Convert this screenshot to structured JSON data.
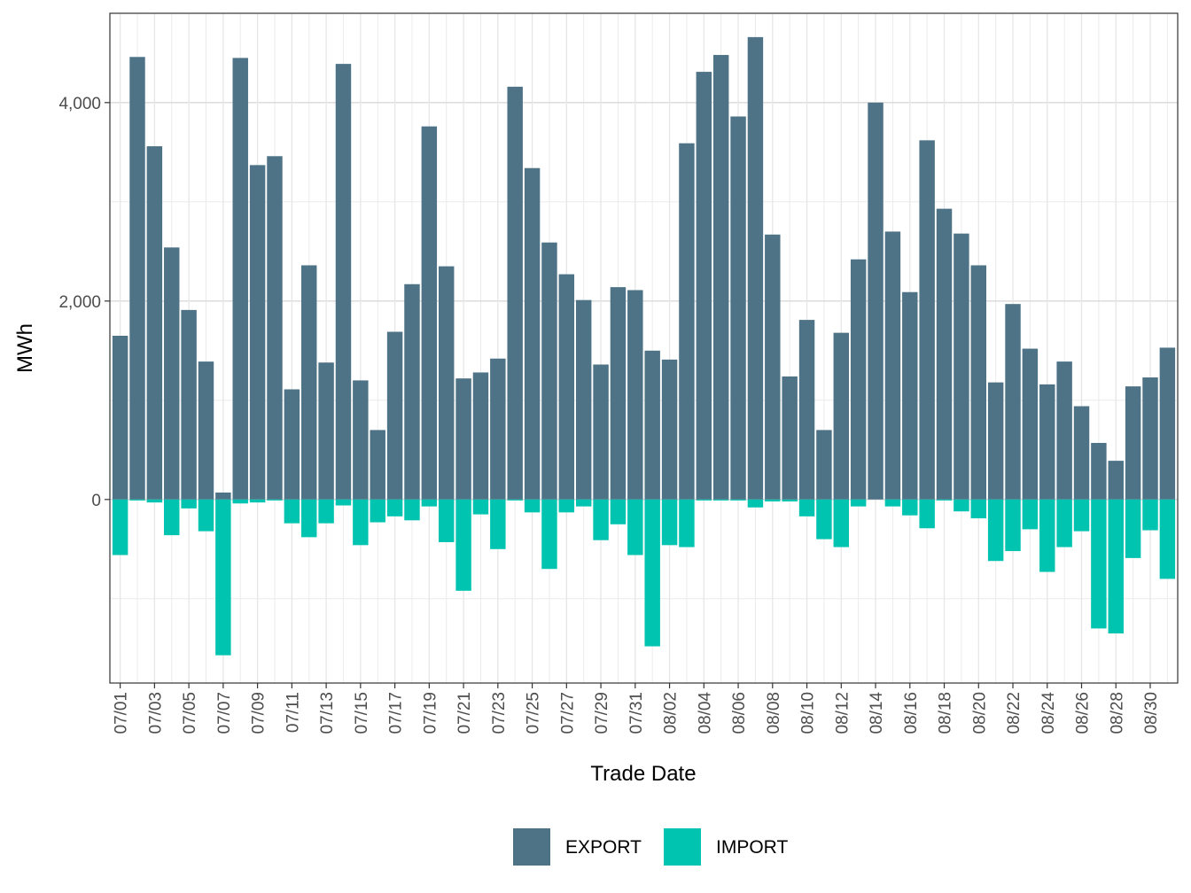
{
  "chart_data": {
    "type": "bar",
    "stacked": true,
    "xlabel": "Trade Date",
    "ylabel": "MWh",
    "ylim": [
      -1850,
      4900
    ],
    "y_ticks": [
      0,
      2000,
      4000
    ],
    "y_tick_labels": [
      "0",
      "2,000",
      "4,000"
    ],
    "y_minor_ticks": [
      -1000,
      1000,
      3000
    ],
    "x_tick_labels": [
      "07/01",
      "07/03",
      "07/05",
      "07/07",
      "07/09",
      "07/11",
      "07/13",
      "07/15",
      "07/17",
      "07/19",
      "07/21",
      "07/23",
      "07/25",
      "07/27",
      "07/29",
      "07/31",
      "08/02",
      "08/04",
      "08/06",
      "08/08",
      "08/10",
      "08/12",
      "08/14",
      "08/16",
      "08/18",
      "08/20",
      "08/22",
      "08/24",
      "08/26",
      "08/28",
      "08/30"
    ],
    "legend_position": "bottom",
    "categories": [
      "07/01",
      "07/02",
      "07/03",
      "07/04",
      "07/05",
      "07/06",
      "07/07",
      "07/08",
      "07/09",
      "07/10",
      "07/11",
      "07/12",
      "07/13",
      "07/14",
      "07/15",
      "07/16",
      "07/17",
      "07/18",
      "07/19",
      "07/20",
      "07/21",
      "07/22",
      "07/23",
      "07/24",
      "07/25",
      "07/26",
      "07/27",
      "07/28",
      "07/29",
      "07/30",
      "07/31",
      "08/01",
      "08/02",
      "08/03",
      "08/04",
      "08/05",
      "08/06",
      "08/07",
      "08/08",
      "08/09",
      "08/10",
      "08/11",
      "08/12",
      "08/13",
      "08/14",
      "08/15",
      "08/16",
      "08/17",
      "08/18",
      "08/19",
      "08/20",
      "08/21",
      "08/22",
      "08/23",
      "08/24",
      "08/25",
      "08/26",
      "08/27",
      "08/28",
      "08/29",
      "08/30",
      "08/31"
    ],
    "series": [
      {
        "name": "EXPORT",
        "color": "#4e7387",
        "values": [
          1650,
          4460,
          3560,
          2540,
          1910,
          1390,
          70,
          4450,
          3370,
          3460,
          1110,
          2360,
          1380,
          4390,
          1200,
          700,
          1690,
          2170,
          3760,
          2350,
          1220,
          1280,
          1420,
          4160,
          3340,
          2590,
          2270,
          2010,
          1360,
          2140,
          2110,
          1500,
          1410,
          3590,
          4310,
          4480,
          3860,
          4660,
          2670,
          1240,
          1810,
          700,
          1680,
          2420,
          4000,
          2700,
          2090,
          3620,
          2930,
          2680,
          2360,
          1180,
          1970,
          1520,
          1160,
          1390,
          940,
          570,
          390,
          1140,
          1230,
          1530
        ]
      },
      {
        "name": "IMPORT",
        "color": "#00c4b0",
        "values": [
          -560,
          -10,
          -30,
          -360,
          -90,
          -320,
          -1570,
          -40,
          -30,
          -10,
          -240,
          -380,
          -240,
          -60,
          -460,
          -230,
          -170,
          -210,
          -70,
          -430,
          -920,
          -150,
          -500,
          -10,
          -130,
          -700,
          -130,
          -70,
          -410,
          -250,
          -560,
          -1480,
          -460,
          -480,
          -10,
          -10,
          -10,
          -80,
          -20,
          -20,
          -170,
          -400,
          -480,
          -70,
          0,
          -70,
          -160,
          -290,
          -10,
          -120,
          -190,
          -620,
          -520,
          -300,
          -730,
          -480,
          -320,
          -1300,
          -1350,
          -590,
          -310,
          -800
        ]
      }
    ]
  }
}
